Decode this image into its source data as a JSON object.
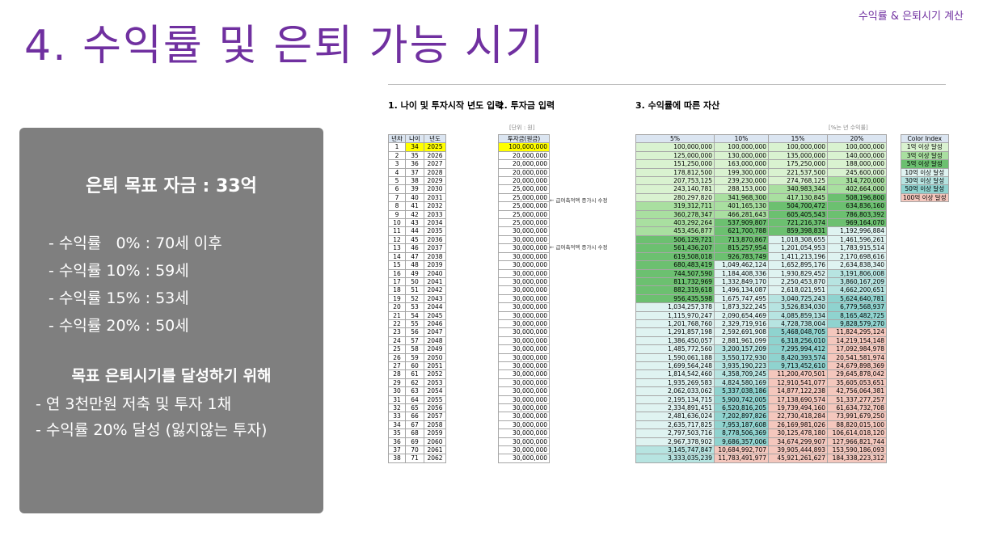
{
  "corner_label": "수익률 & 은퇴시기 계산",
  "title": "4. 수익률 및 은퇴 가능 시기",
  "panel": {
    "goal": "은퇴 목표 자금 : 33억",
    "rates": [
      "- 수익률   0% : 70세 이후",
      "- 수익률 10% : 59세",
      "- 수익률 15% : 53세",
      "- 수익률 20% : 50세"
    ],
    "subheading": "목표 은퇴시기를 달성하기 위해",
    "requirements": [
      "- 연 3천만원 저축 및 투자 1채",
      "- 수익률 20% 달성 (잃지않는 투자)"
    ]
  },
  "sheet": {
    "section1": "1. 나이 및 투자시작 년도 입력",
    "section2": "2. 투자금 입력",
    "section3": "3. 수익률에 따른 자산",
    "unit_left": "[단위 : 원]",
    "unit_right": "[%는 년 수익률]",
    "headers_left": [
      "년차",
      "나이",
      "년도"
    ],
    "header_invest": "투자금(원금)",
    "headers_rates": [
      "5%",
      "10%",
      "15%",
      "20%"
    ],
    "notes": [
      "← 급여축적액 증가시 수정",
      "← 급여축적액 증가시 수정"
    ],
    "legend_title": "Color Index",
    "legend": [
      {
        "label": "1억 이상 달성",
        "color": "#d9f2d0"
      },
      {
        "label": "3억 이상 달성",
        "color": "#a9dfa0"
      },
      {
        "label": "5억 이상 달성",
        "color": "#6cc070"
      },
      {
        "label": "10억 이상 달성",
        "color": "#dff3f1"
      },
      {
        "label": "30억 이상 달성",
        "color": "#b7e4e1"
      },
      {
        "label": "50억 이상 달성",
        "color": "#8fd3cf"
      },
      {
        "label": "100억 이상 달성",
        "color": "#f4c7bd"
      }
    ],
    "rows": [
      [
        "1",
        "34",
        "2025",
        "100,000,000",
        "100,000,000",
        "100,000,000",
        "100,000,000",
        "100,000,000"
      ],
      [
        "2",
        "35",
        "2026",
        "20,000,000",
        "125,000,000",
        "130,000,000",
        "135,000,000",
        "140,000,000"
      ],
      [
        "3",
        "36",
        "2027",
        "20,000,000",
        "151,250,000",
        "163,000,000",
        "175,250,000",
        "188,000,000"
      ],
      [
        "4",
        "37",
        "2028",
        "20,000,000",
        "178,812,500",
        "199,300,000",
        "221,537,500",
        "245,600,000"
      ],
      [
        "5",
        "38",
        "2029",
        "20,000,000",
        "207,753,125",
        "239,230,000",
        "274,768,125",
        "314,720,000"
      ],
      [
        "6",
        "39",
        "2030",
        "25,000,000",
        "243,140,781",
        "288,153,000",
        "340,983,344",
        "402,664,000"
      ],
      [
        "7",
        "40",
        "2031",
        "25,000,000",
        "280,297,820",
        "341,968,300",
        "417,130,845",
        "508,196,800"
      ],
      [
        "8",
        "41",
        "2032",
        "25,000,000",
        "319,312,711",
        "401,165,130",
        "504,700,472",
        "634,836,160"
      ],
      [
        "9",
        "42",
        "2033",
        "25,000,000",
        "360,278,347",
        "466,281,643",
        "605,405,543",
        "786,803,392"
      ],
      [
        "10",
        "43",
        "2034",
        "25,000,000",
        "403,292,264",
        "537,909,807",
        "721,216,374",
        "969,164,070"
      ],
      [
        "11",
        "44",
        "2035",
        "30,000,000",
        "453,456,877",
        "621,700,788",
        "859,398,831",
        "1,192,996,884"
      ],
      [
        "12",
        "45",
        "2036",
        "30,000,000",
        "506,129,721",
        "713,870,867",
        "1,018,308,655",
        "1,461,596,261"
      ],
      [
        "13",
        "46",
        "2037",
        "30,000,000",
        "561,436,207",
        "815,257,954",
        "1,201,054,953",
        "1,783,915,514"
      ],
      [
        "14",
        "47",
        "2038",
        "30,000,000",
        "619,508,018",
        "926,783,749",
        "1,411,213,196",
        "2,170,698,616"
      ],
      [
        "15",
        "48",
        "2039",
        "30,000,000",
        "680,483,419",
        "1,049,462,124",
        "1,652,895,176",
        "2,634,838,340"
      ],
      [
        "16",
        "49",
        "2040",
        "30,000,000",
        "744,507,590",
        "1,184,408,336",
        "1,930,829,452",
        "3,191,806,008"
      ],
      [
        "17",
        "50",
        "2041",
        "30,000,000",
        "811,732,969",
        "1,332,849,170",
        "2,250,453,870",
        "3,860,167,209"
      ],
      [
        "18",
        "51",
        "2042",
        "30,000,000",
        "882,319,618",
        "1,496,134,087",
        "2,618,021,951",
        "4,662,200,651"
      ],
      [
        "19",
        "52",
        "2043",
        "30,000,000",
        "956,435,598",
        "1,675,747,495",
        "3,040,725,243",
        "5,624,640,781"
      ],
      [
        "20",
        "53",
        "2044",
        "30,000,000",
        "1,034,257,378",
        "1,873,322,245",
        "3,526,834,030",
        "6,779,568,937"
      ],
      [
        "21",
        "54",
        "2045",
        "30,000,000",
        "1,115,970,247",
        "2,090,654,469",
        "4,085,859,134",
        "8,165,482,725"
      ],
      [
        "22",
        "55",
        "2046",
        "30,000,000",
        "1,201,768,760",
        "2,329,719,916",
        "4,728,738,004",
        "9,828,579,270"
      ],
      [
        "23",
        "56",
        "2047",
        "30,000,000",
        "1,291,857,198",
        "2,592,691,908",
        "5,468,048,705",
        "11,824,295,124"
      ],
      [
        "24",
        "57",
        "2048",
        "30,000,000",
        "1,386,450,057",
        "2,881,961,099",
        "6,318,256,010",
        "14,219,154,148"
      ],
      [
        "25",
        "58",
        "2049",
        "30,000,000",
        "1,485,772,560",
        "3,200,157,209",
        "7,295,994,412",
        "17,092,984,978"
      ],
      [
        "26",
        "59",
        "2050",
        "30,000,000",
        "1,590,061,188",
        "3,550,172,930",
        "8,420,393,574",
        "20,541,581,974"
      ],
      [
        "27",
        "60",
        "2051",
        "30,000,000",
        "1,699,564,248",
        "3,935,190,223",
        "9,713,452,610",
        "24,679,898,369"
      ],
      [
        "28",
        "61",
        "2052",
        "30,000,000",
        "1,814,542,460",
        "4,358,709,245",
        "11,200,470,501",
        "29,645,878,042"
      ],
      [
        "29",
        "62",
        "2053",
        "30,000,000",
        "1,935,269,583",
        "4,824,580,169",
        "12,910,541,077",
        "35,605,053,651"
      ],
      [
        "30",
        "63",
        "2054",
        "30,000,000",
        "2,062,033,062",
        "5,337,038,186",
        "14,877,122,238",
        "42,756,064,381"
      ],
      [
        "31",
        "64",
        "2055",
        "30,000,000",
        "2,195,134,715",
        "5,900,742,005",
        "17,138,690,574",
        "51,337,277,257"
      ],
      [
        "32",
        "65",
        "2056",
        "30,000,000",
        "2,334,891,451",
        "6,520,816,205",
        "19,739,494,160",
        "61,634,732,708"
      ],
      [
        "33",
        "66",
        "2057",
        "30,000,000",
        "2,481,636,024",
        "7,202,897,826",
        "22,730,418,284",
        "73,991,679,250"
      ],
      [
        "34",
        "67",
        "2058",
        "30,000,000",
        "2,635,717,825",
        "7,953,187,608",
        "26,169,981,026",
        "88,820,015,100"
      ],
      [
        "35",
        "68",
        "2059",
        "30,000,000",
        "2,797,503,716",
        "8,778,506,369",
        "30,125,478,180",
        "106,614,018,120"
      ],
      [
        "36",
        "69",
        "2060",
        "30,000,000",
        "2,967,378,902",
        "9,686,357,006",
        "34,674,299,907",
        "127,966,821,744"
      ],
      [
        "37",
        "70",
        "2061",
        "30,000,000",
        "3,145,747,847",
        "10,684,992,707",
        "39,905,444,893",
        "153,590,186,093"
      ],
      [
        "38",
        "71",
        "2062",
        "30,000,000",
        "3,333,035,239",
        "11,783,491,977",
        "45,921,261,627",
        "184,338,223,312"
      ]
    ]
  }
}
